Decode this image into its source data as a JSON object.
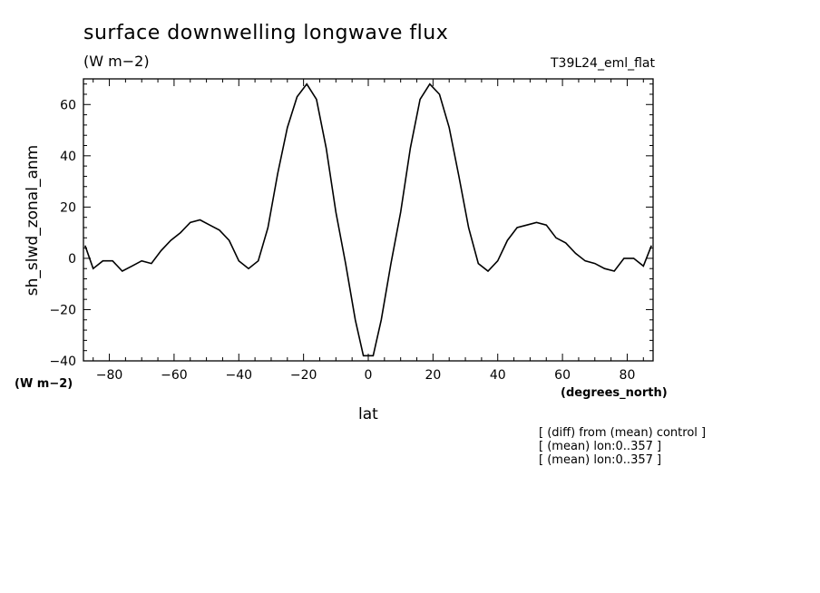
{
  "header": {
    "title": "surface downwelling longwave flux",
    "units": "(W m−2)",
    "run": "T39L24_eml_flat"
  },
  "axes": {
    "xlabel": "lat",
    "ylabel": "sh_slwd_zonal_anm",
    "xunits": "(degrees_north)",
    "yunits": "(W m−2)"
  },
  "notes": [
    "[ (diff) from (mean) control ]",
    "[ (mean) lon:0..357 ]",
    "[ (mean) lon:0..357 ]"
  ],
  "chart_data": {
    "type": "line",
    "title": "surface downwelling longwave flux",
    "xlabel": "lat",
    "ylabel": "sh_slwd_zonal_anm",
    "xlim": [
      -88,
      88
    ],
    "ylim": [
      -40,
      70
    ],
    "xticks": [
      -80,
      -60,
      -40,
      -20,
      0,
      20,
      40,
      60,
      80
    ],
    "yticks": [
      -40,
      -20,
      0,
      20,
      40,
      60
    ],
    "grid": false,
    "series": [
      {
        "x": [
          -87.5,
          -85,
          -82,
          -79,
          -76,
          -73,
          -70,
          -67,
          -64,
          -61,
          -58,
          -55,
          -52,
          -49,
          -46,
          -43,
          -40,
          -37,
          -34,
          -31,
          -28,
          -25,
          -22,
          -19,
          -16,
          -13,
          -10,
          -7,
          -4,
          -1.5,
          1.5,
          4,
          7,
          10,
          13,
          16,
          19,
          22,
          25,
          28,
          31,
          34,
          37,
          40,
          43,
          46,
          49,
          52,
          55,
          58,
          61,
          64,
          67,
          70,
          73,
          76,
          79,
          82,
          85,
          87.5
        ],
        "y": [
          5,
          -4,
          -1,
          -1,
          -5,
          -3,
          -1,
          -2,
          3,
          7,
          10,
          14,
          15,
          13,
          11,
          7,
          -1,
          -4,
          -1,
          12,
          33,
          51,
          63,
          68,
          62,
          43,
          18,
          -2,
          -24,
          -38,
          -38,
          -24,
          -2,
          18,
          43,
          62,
          68,
          64,
          51,
          32,
          12,
          -2,
          -5,
          -1,
          7,
          12,
          13,
          14,
          13,
          8,
          6,
          2,
          -1,
          -2,
          -4,
          -5,
          0,
          0,
          -3,
          5
        ]
      }
    ]
  }
}
